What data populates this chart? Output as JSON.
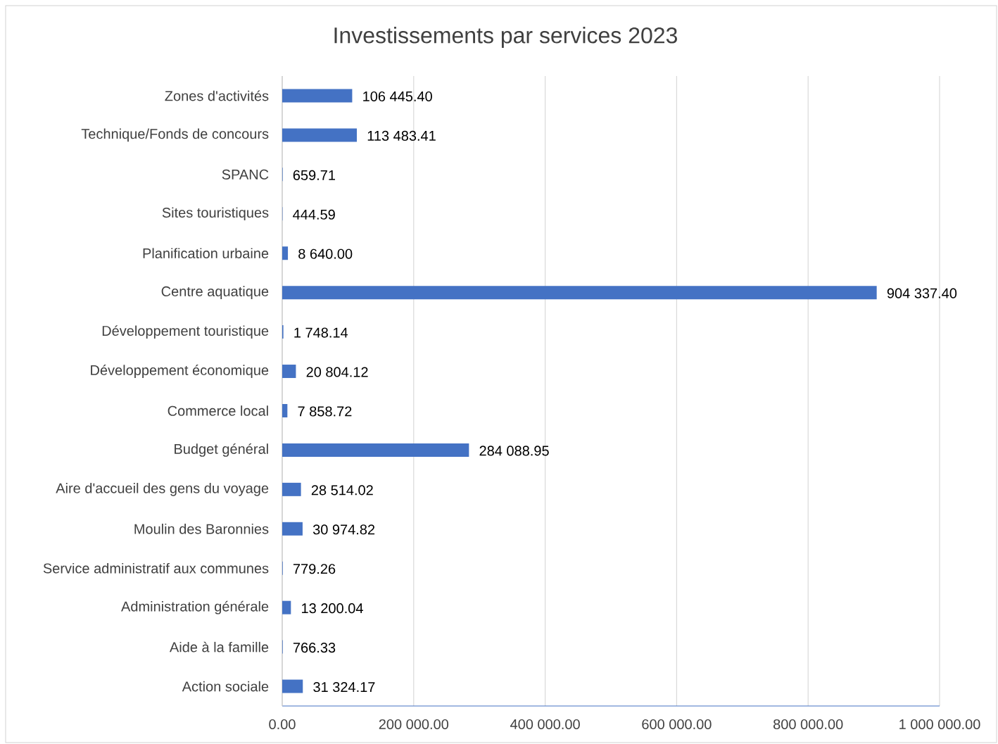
{
  "chart_data": {
    "type": "bar",
    "orientation": "horizontal",
    "title": "Investissements par services 2023",
    "categories": [
      "Zones d'activités",
      "Technique/Fonds de concours",
      "SPANC",
      "Sites touristiques",
      "Planification urbaine",
      "Centre aquatique",
      "Développement touristique",
      "Développement économique",
      "Commerce local",
      "Budget général",
      "Aire d'accueil des gens du voyage",
      "Moulin des Baronnies",
      "Service administratif aux communes",
      "Administration générale",
      "Aide à la famille",
      "Action sociale"
    ],
    "values": [
      106445.4,
      113483.41,
      659.71,
      444.59,
      8640.0,
      904337.4,
      1748.14,
      20804.12,
      7858.72,
      284088.95,
      28514.02,
      30974.82,
      779.26,
      13200.04,
      766.33,
      31324.17
    ],
    "value_labels": [
      "106 445.40",
      "113 483.41",
      "659.71",
      "444.59",
      "8 640.00",
      "904 337.40",
      "1 748.14",
      "20 804.12",
      "7 858.72",
      "284 088.95",
      "28 514.02",
      "30 974.82",
      "779.26",
      "13 200.04",
      "766.33",
      "31 324.17"
    ],
    "color": "#4472c4",
    "xlim": [
      0,
      1000000
    ],
    "xticks": [
      {
        "value": 0,
        "label": "0.00"
      },
      {
        "value": 200000,
        "label": "200 000.00"
      },
      {
        "value": 400000,
        "label": "400 000.00"
      },
      {
        "value": 600000,
        "label": "600 000.00"
      },
      {
        "value": 800000,
        "label": "800 000.00"
      },
      {
        "value": 1000000,
        "label": "1 000 000.00"
      }
    ],
    "grid": "x",
    "legend": false
  }
}
